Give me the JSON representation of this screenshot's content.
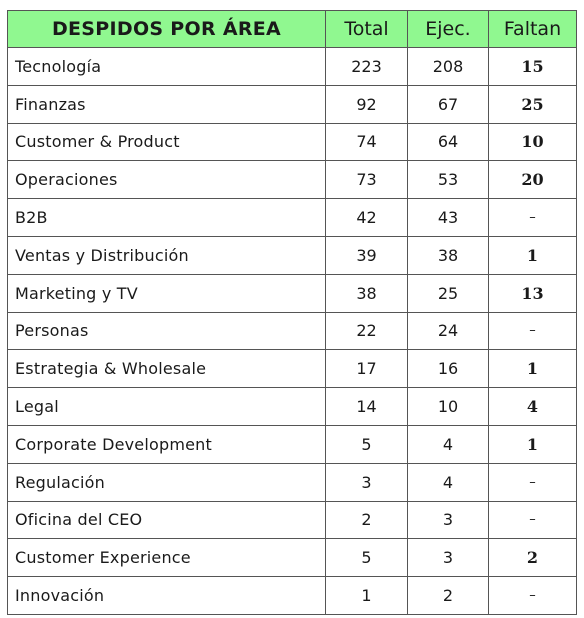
{
  "headers": {
    "area": "DESPIDOS POR ÁREA",
    "total": "Total",
    "ejec": "Ejec.",
    "faltan": "Faltan"
  },
  "colors": {
    "header_bg": "#90f890",
    "border": "#555555"
  },
  "rows": [
    {
      "area": "Tecnología",
      "total": "223",
      "ejec": "208",
      "faltan": "15"
    },
    {
      "area": "Finanzas",
      "total": "92",
      "ejec": "67",
      "faltan": "25"
    },
    {
      "area": "Customer & Product",
      "total": "74",
      "ejec": "64",
      "faltan": "10"
    },
    {
      "area": "Operaciones",
      "total": "73",
      "ejec": "53",
      "faltan": "20"
    },
    {
      "area": "B2B",
      "total": "42",
      "ejec": "43",
      "faltan": "–"
    },
    {
      "area": "Ventas y Distribución",
      "total": "39",
      "ejec": "38",
      "faltan": "1"
    },
    {
      "area": "Marketing y TV",
      "total": "38",
      "ejec": "25",
      "faltan": "13"
    },
    {
      "area": "Personas",
      "total": "22",
      "ejec": "24",
      "faltan": "–"
    },
    {
      "area": "Estrategia & Wholesale",
      "total": "17",
      "ejec": "16",
      "faltan": "1"
    },
    {
      "area": "Legal",
      "total": "14",
      "ejec": "10",
      "faltan": "4"
    },
    {
      "area": "Corporate Development",
      "total": "5",
      "ejec": "4",
      "faltan": "1"
    },
    {
      "area": "Regulación",
      "total": "3",
      "ejec": "4",
      "faltan": "–"
    },
    {
      "area": "Oficina del CEO",
      "total": "2",
      "ejec": "3",
      "faltan": "–"
    },
    {
      "area": "Customer Experience",
      "total": "5",
      "ejec": "3",
      "faltan": "2"
    },
    {
      "area": "Innovación",
      "total": "1",
      "ejec": "2",
      "faltan": "–"
    }
  ]
}
